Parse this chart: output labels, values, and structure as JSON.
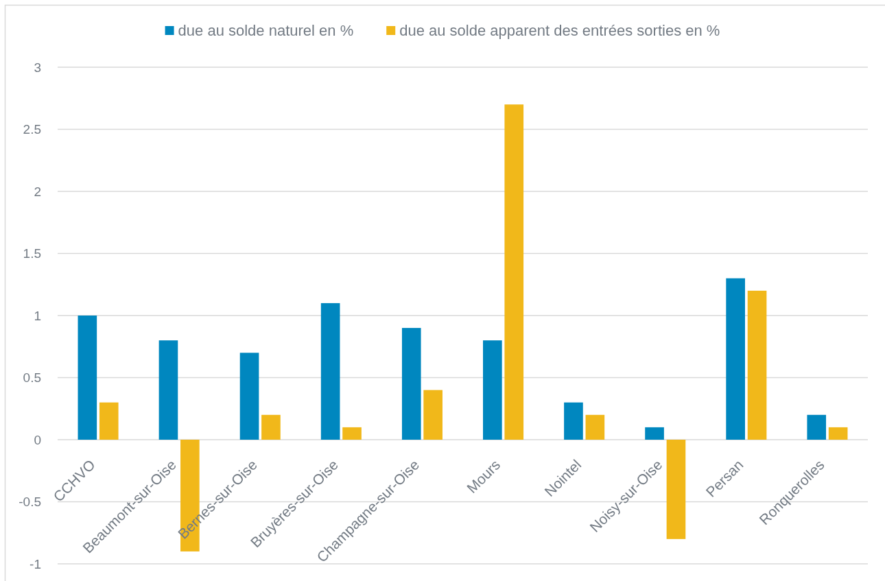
{
  "chart_data": {
    "type": "bar",
    "categories": [
      "CCHVO",
      "Beaumont-sur-Oise",
      "Bernes-sur-Oise",
      "Bruyères-sur-Oise",
      "Champagne-sur-Oise",
      "Mours",
      "Nointel",
      "Noisy-sur-Oise",
      "Persan",
      "Ronquerolles"
    ],
    "series": [
      {
        "name": "due au solde naturel en %",
        "color": "#0087bf",
        "values": [
          1.0,
          0.8,
          0.7,
          1.1,
          0.9,
          0.8,
          0.3,
          0.1,
          1.3,
          0.2
        ]
      },
      {
        "name": "due au solde apparent des entrées sorties en %",
        "color": "#f1b81a",
        "values": [
          0.3,
          -0.9,
          0.2,
          0.1,
          0.4,
          2.7,
          0.2,
          -0.8,
          1.2,
          0.1
        ]
      }
    ],
    "ylim": [
      -1,
      3
    ],
    "yticks": [
      -1,
      -0.5,
      0,
      0.5,
      1,
      1.5,
      2,
      2.5,
      3
    ],
    "grid": "y",
    "legend": "top"
  }
}
